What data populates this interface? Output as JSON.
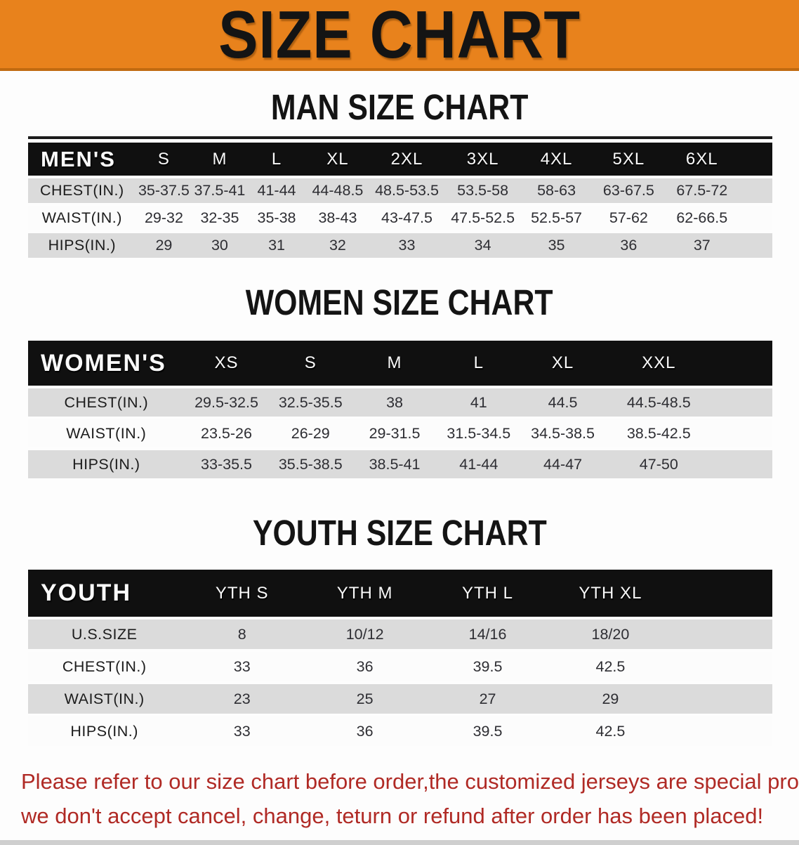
{
  "banner": {
    "title": "SIZE CHART",
    "bg_color": "#e8821c"
  },
  "sections": [
    {
      "heading": "MAN SIZE CHART",
      "table": {
        "label": "MEN'S",
        "columns": [
          "S",
          "M",
          "L",
          "XL",
          "2XL",
          "3XL",
          "4XL",
          "5XL",
          "6XL"
        ],
        "rows": [
          {
            "label": "CHEST(IN.)",
            "values": [
              "35-37.5",
              "37.5-41",
              "41-44",
              "44-48.5",
              "48.5-53.5",
              "53.5-58",
              "58-63",
              "63-67.5",
              "67.5-72"
            ]
          },
          {
            "label": "WAIST(IN.)",
            "values": [
              "29-32",
              "32-35",
              "35-38",
              "38-43",
              "43-47.5",
              "47.5-52.5",
              "52.5-57",
              "57-62",
              "62-66.5"
            ]
          },
          {
            "label": "HIPS(IN.)",
            "values": [
              "29",
              "30",
              "31",
              "32",
              "33",
              "34",
              "35",
              "36",
              "37"
            ]
          }
        ]
      }
    },
    {
      "heading": "WOMEN SIZE CHART",
      "table": {
        "label": "WOMEN'S",
        "columns": [
          "XS",
          "S",
          "M",
          "L",
          "XL",
          "XXL"
        ],
        "rows": [
          {
            "label": "CHEST(IN.)",
            "values": [
              "29.5-32.5",
              "32.5-35.5",
              "38",
              "41",
              "44.5",
              "44.5-48.5"
            ]
          },
          {
            "label": "WAIST(IN.)",
            "values": [
              "23.5-26",
              "26-29",
              "29-31.5",
              "31.5-34.5",
              "34.5-38.5",
              "38.5-42.5"
            ]
          },
          {
            "label": "HIPS(IN.)",
            "values": [
              "33-35.5",
              "35.5-38.5",
              "38.5-41",
              "41-44",
              "44-47",
              "47-50"
            ]
          }
        ]
      }
    },
    {
      "heading": "YOUTH SIZE CHART",
      "table": {
        "label": "YOUTH",
        "columns": [
          "YTH S",
          "YTH M",
          "YTH L",
          "YTH XL"
        ],
        "rows": [
          {
            "label": "U.S.SIZE",
            "values": [
              "8",
              "10/12",
              "14/16",
              "18/20"
            ]
          },
          {
            "label": "CHEST(IN.)",
            "values": [
              "33",
              "36",
              "39.5",
              "42.5"
            ]
          },
          {
            "label": "WAIST(IN.)",
            "values": [
              "23",
              "25",
              "27",
              "29"
            ]
          },
          {
            "label": "HIPS(IN.)",
            "values": [
              "33",
              "36",
              "39.5",
              "42.5"
            ]
          }
        ]
      }
    }
  ],
  "footer": {
    "line1": "Please refer to our size chart before order,the customized jerseys are special products,",
    "line2": "we don't accept cancel, change, teturn or refund after order has been placed!",
    "color": "#b02a25"
  }
}
